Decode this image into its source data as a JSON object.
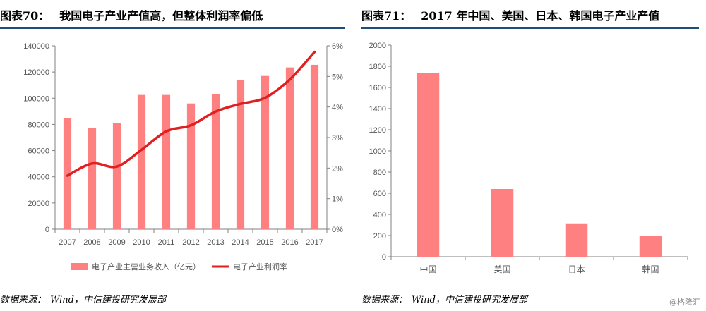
{
  "left": {
    "fig_label": "图表70：",
    "fig_title": "我国电子产业产值高，但整体利润率偏低",
    "source_label": "数据来源：",
    "source_text": "Wind，中信建投研究发展部"
  },
  "right": {
    "fig_label": "图表71：",
    "fig_title": "2017 年中国、美国、日本、韩国电子产业产值",
    "source_label": "数据来源：",
    "source_text": "Wind，中信建投研究发展部"
  },
  "watermark": "@格隆汇",
  "colors": {
    "bar": "#ff8080",
    "line": "#e02020",
    "rule": "#1f4e79",
    "axis": "#808080"
  },
  "chart_data": [
    {
      "type": "bar+line",
      "categories": [
        "2007",
        "2008",
        "2009",
        "2010",
        "2011",
        "2012",
        "2013",
        "2014",
        "2015",
        "2016",
        "2017"
      ],
      "series": [
        {
          "name": "电子产业主营业务收入（亿元）",
          "type": "bar",
          "axis": "left",
          "values": [
            85000,
            77000,
            81000,
            102500,
            102500,
            96000,
            103000,
            114000,
            117000,
            123500,
            125500
          ]
        },
        {
          "name": "电子产业利润率",
          "type": "line",
          "axis": "right",
          "values": [
            1.75,
            2.15,
            2.05,
            2.6,
            3.2,
            3.4,
            3.85,
            4.1,
            4.3,
            4.9,
            5.8
          ]
        }
      ],
      "y_left": {
        "min": 0,
        "max": 140000,
        "ticks": [
          "0",
          "20000",
          "40000",
          "60000",
          "80000",
          "100000",
          "120000",
          "140000"
        ]
      },
      "y_right": {
        "min": 0,
        "max": 6,
        "ticks": [
          "0%",
          "1%",
          "2%",
          "3%",
          "4%",
          "5%",
          "6%"
        ]
      },
      "legend_position": "bottom",
      "grid": false
    },
    {
      "type": "bar",
      "categories": [
        "中国",
        "美国",
        "日本",
        "韩国"
      ],
      "values": [
        1740,
        640,
        315,
        195
      ],
      "y": {
        "min": 0,
        "max": 2000,
        "ticks": [
          "0",
          "200",
          "400",
          "600",
          "800",
          "1000",
          "1200",
          "1400",
          "1600",
          "1800",
          "2000"
        ]
      },
      "grid": false
    }
  ]
}
